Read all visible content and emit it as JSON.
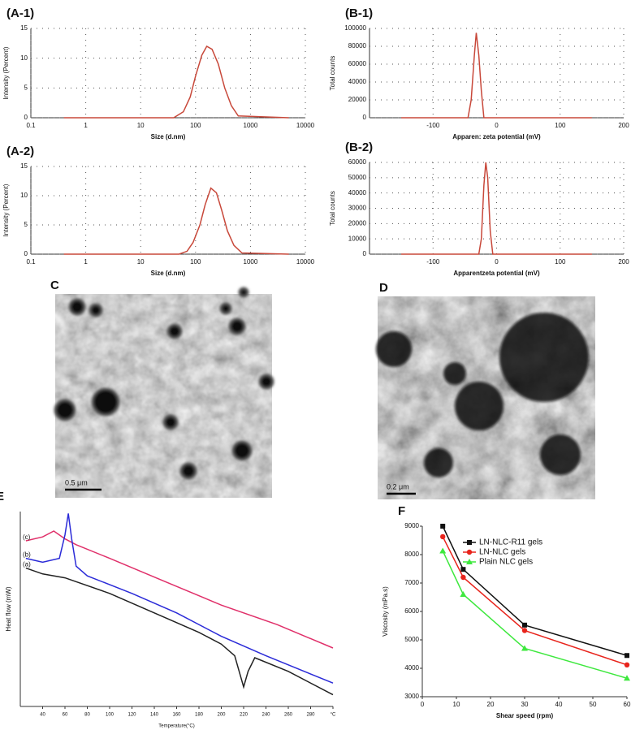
{
  "chart_data": [
    {
      "type": "line",
      "panel": "(A-1)",
      "xlabel": "Size (d.nm)",
      "ylabel": "Intensity (Percent)",
      "xscale": "log",
      "grid": true,
      "legend": false,
      "xlim": [
        0.1,
        10000
      ],
      "xticks": [
        0.1,
        1,
        10,
        100,
        1000,
        10000
      ],
      "ylim": [
        0,
        15
      ],
      "yticks": [
        0,
        5,
        10,
        15
      ],
      "series": [
        {
          "color": "#c8483a",
          "x": [
            0.4,
            40,
            60,
            80,
            100,
            130,
            160,
            200,
            260,
            340,
            450,
            600,
            5000
          ],
          "values": [
            0,
            0,
            1,
            3.5,
            7,
            10.5,
            12,
            11.5,
            9,
            5,
            2,
            0.3,
            0
          ]
        }
      ]
    },
    {
      "type": "line",
      "panel": "(A-2)",
      "xlabel": "Size (d.nm)",
      "ylabel": "Intensity (Percent)",
      "xscale": "log",
      "grid": true,
      "legend": false,
      "xlim": [
        0.1,
        10000
      ],
      "xticks": [
        0.1,
        1,
        10,
        100,
        1000,
        10000
      ],
      "ylim": [
        0,
        15
      ],
      "yticks": [
        0,
        5,
        10,
        15
      ],
      "series": [
        {
          "color": "#c8483a",
          "x": [
            0.4,
            50,
            70,
            90,
            120,
            150,
            190,
            240,
            300,
            380,
            500,
            700,
            5000
          ],
          "values": [
            0,
            0,
            0.5,
            2,
            5,
            8.5,
            11.3,
            10.5,
            7.5,
            4,
            1.5,
            0.2,
            0
          ]
        }
      ]
    },
    {
      "type": "line",
      "panel": "(B-1)",
      "xlabel": "Apparen: zeta potential (mV)",
      "ylabel": "Total counts",
      "grid": true,
      "legend": false,
      "xlim": [
        -200,
        200
      ],
      "xticks": [
        -100,
        0,
        100,
        200
      ],
      "ylim": [
        0,
        100000
      ],
      "yticks": [
        0,
        20000,
        40000,
        60000,
        80000,
        100000
      ],
      "series": [
        {
          "color": "#c8483a",
          "x": [
            -150,
            -45,
            -40,
            -35,
            -32,
            -28,
            -24,
            -20,
            150
          ],
          "values": [
            0,
            0,
            20000,
            70000,
            95000,
            70000,
            30000,
            0,
            0
          ]
        }
      ]
    },
    {
      "type": "line",
      "panel": "(B-2)",
      "xlabel": "Apparentzeta potential (mV)",
      "ylabel": "Total counts",
      "grid": true,
      "legend": false,
      "xlim": [
        -200,
        200
      ],
      "xticks": [
        -100,
        0,
        100,
        200
      ],
      "ylim": [
        0,
        60000
      ],
      "yticks": [
        0,
        10000,
        20000,
        30000,
        40000,
        50000,
        60000
      ],
      "series": [
        {
          "color": "#c8483a",
          "x": [
            -150,
            -28,
            -24,
            -20,
            -17,
            -14,
            -10,
            -6,
            150
          ],
          "values": [
            0,
            0,
            10000,
            45000,
            60000,
            50000,
            15000,
            0,
            0
          ]
        }
      ]
    },
    {
      "type": "line",
      "panel": "E",
      "xlabel": "Temperature(°C)",
      "ylabel": "Heat flow (mW)",
      "grid": false,
      "legend": false,
      "xlim": [
        20,
        300
      ],
      "xticks": [
        40,
        60,
        80,
        100,
        120,
        140,
        160,
        180,
        200,
        220,
        240,
        260,
        280,
        {
          "value": 300,
          "label": "°C"
        }
      ],
      "ylim": [
        0,
        100
      ],
      "series": [
        {
          "name": "(c)",
          "color": "#e0306a",
          "x": [
            25,
            40,
            50,
            60,
            70,
            100,
            150,
            200,
            250,
            300
          ],
          "values": [
            85,
            87,
            90,
            86,
            83,
            76,
            64,
            52,
            42,
            30
          ]
        },
        {
          "name": "(b)",
          "color": "#2b2bd8",
          "x": [
            25,
            40,
            55,
            60,
            63,
            66,
            70,
            80,
            120,
            160,
            200,
            240,
            300
          ],
          "values": [
            76,
            74,
            76,
            88,
            99,
            86,
            72,
            67,
            58,
            48,
            36,
            26,
            12
          ]
        },
        {
          "name": "(a)",
          "color": "#222222",
          "x": [
            25,
            40,
            60,
            100,
            140,
            180,
            200,
            212,
            216,
            220,
            224,
            230,
            260,
            300
          ],
          "values": [
            71,
            68,
            66,
            58,
            48,
            38,
            32,
            26,
            18,
            10,
            18,
            25,
            18,
            6
          ]
        }
      ]
    },
    {
      "type": "line",
      "panel": "F",
      "xlabel": "Shear speed (rpm)",
      "ylabel": "Viscosity (mPa.s)",
      "grid": false,
      "legend": "upper right",
      "xlim": [
        0,
        60
      ],
      "xticks": [
        0,
        10,
        20,
        30,
        40,
        50,
        60
      ],
      "ylim": [
        3000,
        9000
      ],
      "yticks": [
        3000,
        4000,
        5000,
        6000,
        7000,
        8000,
        9000
      ],
      "x": [
        6,
        12,
        30,
        60
      ],
      "series": [
        {
          "name": "LN-NLC-R11 gels",
          "color": "#111111",
          "marker": "square",
          "values": [
            9000,
            7480,
            5520,
            4450
          ]
        },
        {
          "name": "LN-NLC gels",
          "color": "#e8241c",
          "marker": "circle",
          "values": [
            8630,
            7200,
            5330,
            4120
          ]
        },
        {
          "name": "Plain NLC gels",
          "color": "#3ee83e",
          "marker": "triangle",
          "values": [
            8130,
            6600,
            4700,
            3650
          ]
        }
      ]
    }
  ],
  "micrographs": [
    {
      "panel": "C",
      "scale_bar": "0.5 μm"
    },
    {
      "panel": "D",
      "scale_bar": "0.2 μm"
    }
  ]
}
